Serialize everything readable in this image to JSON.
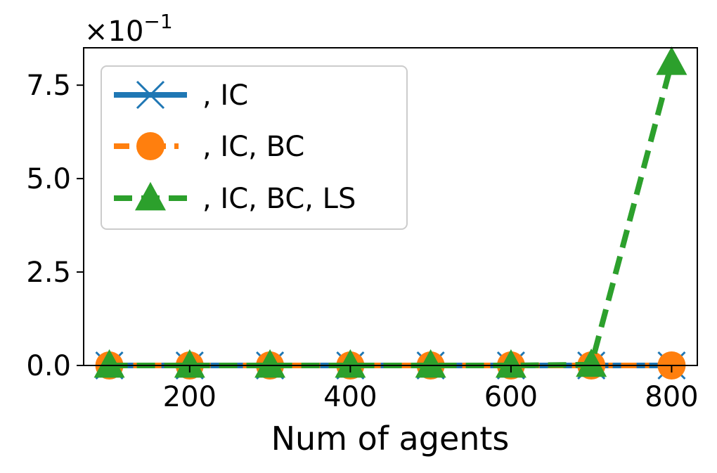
{
  "chart_data": {
    "type": "line",
    "title": "",
    "xlabel": "Num of agents",
    "ylabel": "",
    "x": [
      100,
      200,
      300,
      400,
      500,
      600,
      700,
      800
    ],
    "xticks": [
      200,
      400,
      600,
      800
    ],
    "xlim": [
      68,
      832
    ],
    "ylim": [
      0,
      0.85
    ],
    "yticks": [
      0.0,
      0.25,
      0.5,
      0.75
    ],
    "ytick_labels": [
      "0.0",
      "2.5",
      "5.0",
      "7.5"
    ],
    "y_offset_label": "×10",
    "y_offset_exponent": "−1",
    "grid": false,
    "legend_position": "upper-left",
    "series": [
      {
        "name": ", IC",
        "color": "#1f77b4",
        "marker": "x",
        "line_style": "solid",
        "values": [
          0.0,
          0.0,
          0.0,
          0.0,
          0.0,
          0.0,
          0.0,
          0.0
        ]
      },
      {
        "name": ", IC, BC",
        "color": "#ff7f0e",
        "marker": "circle",
        "line_style": "dashdot",
        "values": [
          0.0,
          0.0,
          0.0,
          0.0,
          0.0,
          0.0,
          0.0,
          0.0
        ]
      },
      {
        "name": ", IC, BC, LS",
        "color": "#2ca02c",
        "marker": "triangle",
        "line_style": "dashed",
        "values": [
          0.0,
          0.0,
          0.0,
          0.0,
          0.0,
          0.0,
          0.002,
          0.81
        ]
      }
    ]
  }
}
